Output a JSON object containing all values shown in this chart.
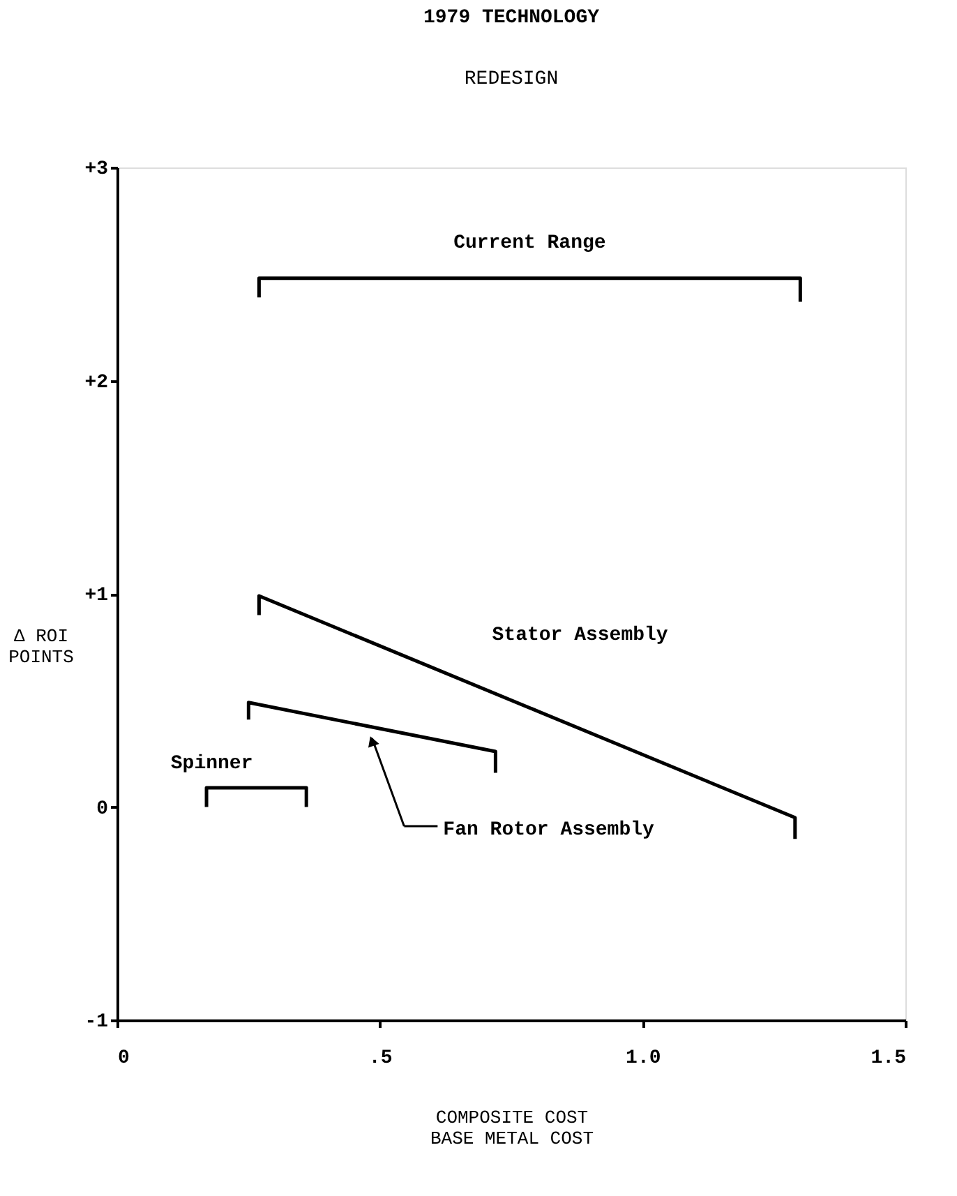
{
  "chart_data": {
    "type": "line",
    "title": "1979 TECHNOLOGY",
    "subtitle": "REDESIGN",
    "xlabel": "COMPOSITE COST\nBASE METAL COST",
    "ylabel": "Δ ROI\nPOINTS",
    "xlim": [
      0,
      1.5
    ],
    "ylim": [
      -1,
      3
    ],
    "xticks": [
      0,
      {
        "value": 0.5,
        "label": ".5"
      },
      {
        "value": 1,
        "label": "1.0"
      },
      1.5
    ],
    "yticks": [
      {
        "value": -1,
        "label": "-1"
      },
      0,
      {
        "value": 1,
        "label": "+1"
      },
      {
        "value": 2,
        "label": "+2"
      },
      {
        "value": 3,
        "label": "+3"
      }
    ],
    "grid": false,
    "marker": "none",
    "line_style": "solid",
    "series": [
      {
        "name": "Current Range",
        "color": "#000000",
        "x": [
          0.27,
          0.27,
          1.3,
          1.3
        ],
        "values": [
          2.39,
          2.48,
          2.48,
          2.37
        ]
      },
      {
        "name": "Stator Assembly",
        "color": "#000000",
        "x": [
          0.27,
          0.27,
          1.29,
          1.29
        ],
        "values": [
          0.9,
          0.99,
          -0.05,
          -0.15
        ]
      },
      {
        "name": "Fan Rotor Assembly",
        "color": "#000000",
        "x": [
          0.25,
          0.25,
          0.72,
          0.72
        ],
        "values": [
          0.41,
          0.49,
          0.26,
          0.16
        ]
      },
      {
        "name": "Spinner",
        "color": "#000000",
        "x": [
          0.17,
          0.17,
          0.36,
          0.36
        ],
        "values": [
          0.0,
          0.09,
          0.09,
          0.0
        ]
      }
    ]
  }
}
